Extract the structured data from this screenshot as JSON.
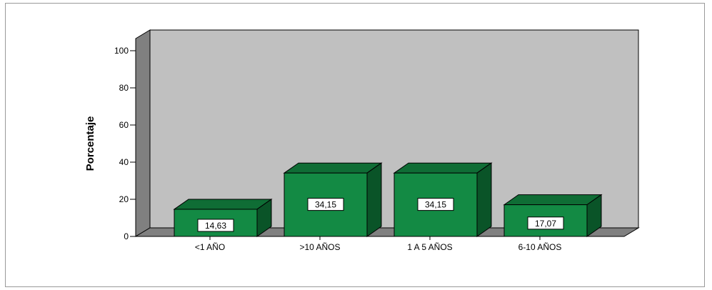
{
  "chart_data": {
    "type": "bar",
    "categories": [
      "<1 AÑO",
      ">10 AÑOS",
      "1 A 5 AÑOS",
      "6-10 AÑOS"
    ],
    "values": [
      14.63,
      34.15,
      34.15,
      17.07
    ],
    "value_labels": [
      "14,63",
      "34,15",
      "34,15",
      "17,07"
    ],
    "ylabel": "Porcentaje",
    "xlabel": "",
    "ylim": [
      0,
      100
    ],
    "yticks": [
      0,
      20,
      40,
      60,
      80,
      100
    ],
    "ytick_labels": [
      "0",
      "20",
      "40",
      "60",
      "80",
      "100"
    ],
    "grid": false,
    "style": "3d-bar",
    "colors": {
      "bar_front": "#138a44",
      "bar_top": "#0f6d35",
      "bar_side": "#0a5428",
      "back_wall": "#c0c0c0",
      "side_wall": "#808080",
      "floor": "#808080"
    }
  }
}
